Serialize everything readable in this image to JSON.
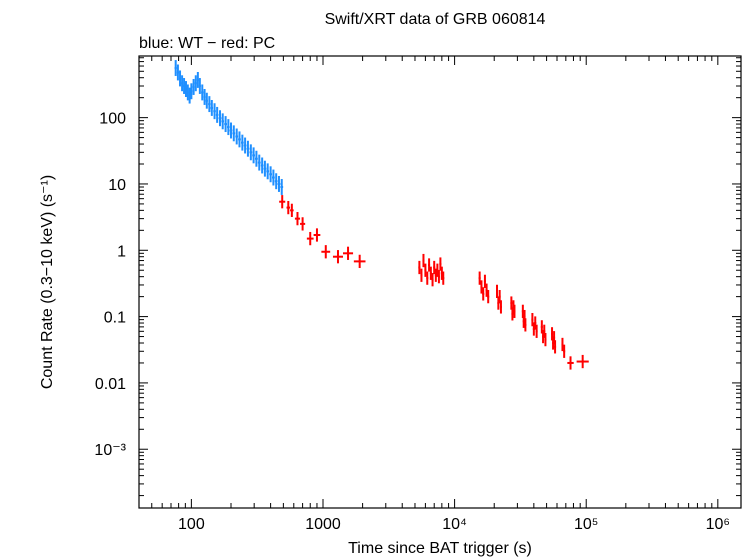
{
  "chart_data": {
    "type": "scatter",
    "title": "Swift/XRT data of GRB 060814",
    "subtitle": "blue: WT − red: PC",
    "xlabel": "Time since BAT trigger (s)",
    "ylabel": "Count Rate (0.3−10 keV) (s⁻¹)",
    "xscale": "log",
    "yscale": "log",
    "xlim": [
      40,
      1500000
    ],
    "ylim": [
      0.00013,
      850
    ],
    "x_ticks": [
      {
        "value": 100,
        "label": "100"
      },
      {
        "value": 1000,
        "label": "1000"
      },
      {
        "value": 10000,
        "label": "10⁴"
      },
      {
        "value": 100000,
        "label": "10⁵"
      },
      {
        "value": 1000000,
        "label": "10⁶"
      }
    ],
    "y_ticks": [
      {
        "value": 100,
        "label": "100"
      },
      {
        "value": 10,
        "label": "10"
      },
      {
        "value": 1,
        "label": "1"
      },
      {
        "value": 0.1,
        "label": "0.1"
      },
      {
        "value": 0.01,
        "label": "0.01"
      },
      {
        "value": 0.001,
        "label": "10⁻³"
      }
    ],
    "grid": false,
    "series": [
      {
        "name": "WT",
        "color": "#1f8fff",
        "points": [
          [
            76,
            560
          ],
          [
            79,
            480
          ],
          [
            82,
            390
          ],
          [
            85,
            330
          ],
          [
            88,
            300
          ],
          [
            91,
            270
          ],
          [
            94,
            240
          ],
          [
            97,
            215
          ],
          [
            100,
            250
          ],
          [
            104,
            290
          ],
          [
            108,
            330
          ],
          [
            112,
            370
          ],
          [
            116,
            300
          ],
          [
            121,
            240
          ],
          [
            126,
            205
          ],
          [
            131,
            180
          ],
          [
            137,
            160
          ],
          [
            143,
            140
          ],
          [
            150,
            125
          ],
          [
            157,
            110
          ],
          [
            165,
            98
          ],
          [
            173,
            88
          ],
          [
            182,
            80
          ],
          [
            191,
            72
          ],
          [
            200,
            64
          ],
          [
            210,
            58
          ],
          [
            221,
            52
          ],
          [
            232,
            47
          ],
          [
            244,
            42
          ],
          [
            256,
            38
          ],
          [
            269,
            34
          ],
          [
            283,
            30
          ],
          [
            297,
            27
          ],
          [
            312,
            24
          ],
          [
            328,
            21
          ],
          [
            345,
            19
          ],
          [
            362,
            17
          ],
          [
            380,
            15.5
          ],
          [
            400,
            14
          ],
          [
            420,
            12.5
          ],
          [
            441,
            11
          ],
          [
            463,
            10
          ],
          [
            486,
            9
          ]
        ],
        "errors_dex": 0.12
      },
      {
        "name": "PC",
        "color": "#ff0000",
        "points": [
          [
            490,
            5.4
          ],
          [
            545,
            4.4
          ],
          [
            580,
            4.0
          ],
          [
            640,
            3.0
          ],
          [
            700,
            2.5
          ],
          [
            800,
            1.5
          ],
          [
            900,
            1.7
          ],
          [
            1050,
            0.95
          ],
          [
            1300,
            0.8
          ],
          [
            1550,
            0.9
          ],
          [
            1900,
            0.68
          ],
          [
            5400,
            0.55
          ],
          [
            5600,
            0.42
          ],
          [
            5800,
            0.7
          ],
          [
            6000,
            0.5
          ],
          [
            6200,
            0.38
          ],
          [
            6400,
            0.6
          ],
          [
            6600,
            0.45
          ],
          [
            6800,
            0.36
          ],
          [
            7000,
            0.55
          ],
          [
            7200,
            0.42
          ],
          [
            7400,
            0.5
          ],
          [
            7600,
            0.4
          ],
          [
            7800,
            0.62
          ],
          [
            8000,
            0.45
          ],
          [
            8200,
            0.38
          ],
          [
            15500,
            0.38
          ],
          [
            16000,
            0.28
          ],
          [
            16500,
            0.22
          ],
          [
            17000,
            0.34
          ],
          [
            17500,
            0.25
          ],
          [
            18000,
            0.2
          ],
          [
            21000,
            0.24
          ],
          [
            21500,
            0.16
          ],
          [
            22000,
            0.2
          ],
          [
            22500,
            0.14
          ],
          [
            27000,
            0.16
          ],
          [
            27500,
            0.11
          ],
          [
            28000,
            0.14
          ],
          [
            28500,
            0.12
          ],
          [
            33000,
            0.12
          ],
          [
            33500,
            0.085
          ],
          [
            34000,
            0.1
          ],
          [
            34500,
            0.075
          ],
          [
            39000,
            0.09
          ],
          [
            40000,
            0.065
          ],
          [
            41000,
            0.08
          ],
          [
            42000,
            0.06
          ],
          [
            46000,
            0.07
          ],
          [
            47000,
            0.05
          ],
          [
            48000,
            0.06
          ],
          [
            49000,
            0.045
          ],
          [
            55000,
            0.055
          ],
          [
            56000,
            0.04
          ],
          [
            57000,
            0.048
          ],
          [
            58000,
            0.035
          ],
          [
            66000,
            0.038
          ],
          [
            68000,
            0.03
          ],
          [
            76000,
            0.02
          ],
          [
            94000,
            0.021
          ]
        ],
        "errors_dex": 0.1
      }
    ]
  }
}
